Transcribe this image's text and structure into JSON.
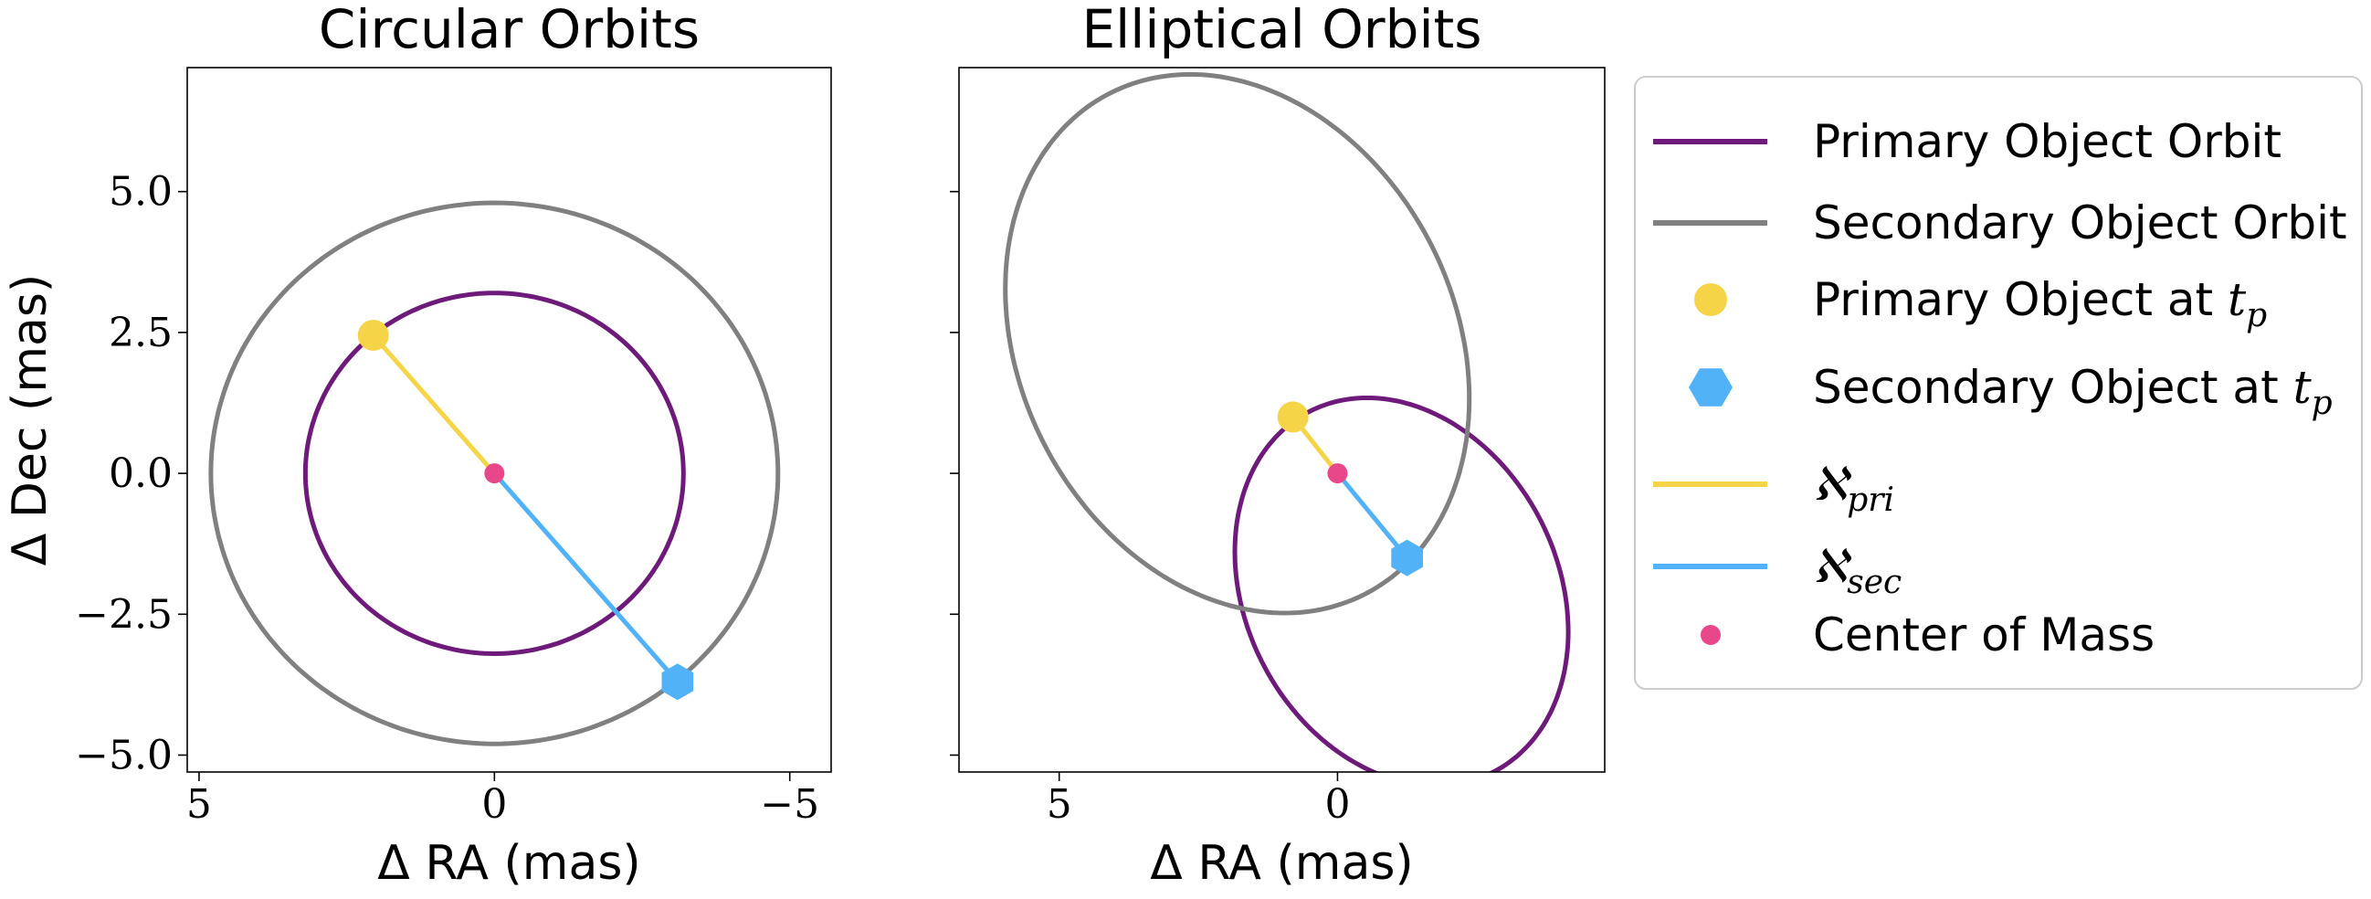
{
  "colors": {
    "primary_orbit": "#6e1a7a",
    "secondary_orbit": "#808080",
    "primary_object": "#f5d547",
    "secondary_object": "#52b2f7",
    "center_of_mass": "#e8488a"
  },
  "legend": {
    "position": "outside-right",
    "items": [
      {
        "label": "Primary Object Orbit",
        "kind": "line",
        "color": "#6e1a7a"
      },
      {
        "label": "Secondary Object Orbit",
        "kind": "line",
        "color": "#808080"
      },
      {
        "label": "Primary Object at",
        "math": "t",
        "sub": "p",
        "kind": "circle",
        "color": "#f5d547"
      },
      {
        "label": "Secondary Object at",
        "math": "t",
        "sub": "p",
        "kind": "hexagon",
        "color": "#52b2f7"
      },
      {
        "label": "",
        "math": "ℵ",
        "sub": "pri",
        "kind": "line",
        "color": "#f5d547"
      },
      {
        "label": "",
        "math": "ℵ",
        "sub": "sec",
        "kind": "line",
        "color": "#52b2f7"
      },
      {
        "label": "Center of Mass",
        "kind": "dot",
        "color": "#e8488a"
      }
    ]
  },
  "chart_data": [
    {
      "type": "scatter",
      "title": "Circular Orbits",
      "xlabel": "Δ RA (mas)",
      "ylabel": "Δ Dec (mas)",
      "xlim": [
        5.2,
        -5.7
      ],
      "ylim": [
        -5.3,
        7.2
      ],
      "xticks": [
        5,
        0,
        -5
      ],
      "xtick_labels": [
        "5",
        "0",
        "−5"
      ],
      "yticks": [
        5.0,
        2.5,
        0.0,
        -2.5,
        -5.0
      ],
      "ytick_labels": [
        "5.0",
        "2.5",
        "0.0",
        "−2.5",
        "−5.0"
      ],
      "show_ytick_labels": true,
      "grid": false,
      "orbits": [
        {
          "name": "Primary Object Orbit",
          "shape": "ellipse",
          "center": [
            0,
            0
          ],
          "a": 3.2,
          "b": 3.2,
          "angle_deg": 0
        },
        {
          "name": "Secondary Object Orbit",
          "shape": "ellipse",
          "center": [
            0,
            0
          ],
          "a": 4.8,
          "b": 4.8,
          "angle_deg": 0
        }
      ],
      "primary_point": [
        2.05,
        2.45
      ],
      "secondary_point": [
        -3.1,
        -3.7
      ],
      "center_of_mass": [
        0,
        0
      ]
    },
    {
      "type": "scatter",
      "title": "Elliptical Orbits",
      "xlabel": "Δ RA (mas)",
      "ylabel": "",
      "xlim": [
        6.8,
        -4.8
      ],
      "ylim": [
        -5.3,
        7.2
      ],
      "xticks": [
        5,
        0
      ],
      "xtick_labels": [
        "5",
        "0"
      ],
      "yticks": [
        5.0,
        2.5,
        0.0,
        -2.5,
        -5.0
      ],
      "ytick_labels": [],
      "show_ytick_labels": false,
      "grid": false,
      "orbits": [
        {
          "name": "Primary Object Orbit",
          "shape": "ellipse",
          "center": [
            -1.15,
            -2.1
          ],
          "a": 3.6,
          "b": 2.8,
          "angle_deg": 62
        },
        {
          "name": "Secondary Object Orbit",
          "shape": "ellipse",
          "center": [
            1.8,
            2.3
          ],
          "a": 5.0,
          "b": 3.9,
          "angle_deg": 62
        }
      ],
      "primary_point": [
        0.8,
        1.0
      ],
      "secondary_point": [
        -1.25,
        -1.5
      ],
      "center_of_mass": [
        0,
        0
      ]
    }
  ]
}
